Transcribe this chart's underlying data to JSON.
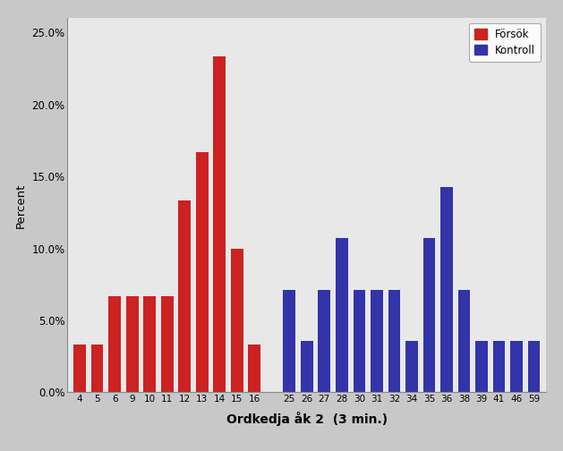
{
  "red_labels": [
    4,
    5,
    6,
    9,
    10,
    11,
    12,
    13,
    14,
    15,
    16
  ],
  "red_values": [
    3.33,
    3.33,
    6.67,
    6.67,
    6.67,
    6.67,
    13.33,
    16.67,
    23.33,
    10.0,
    3.33
  ],
  "blue_labels": [
    25,
    26,
    27,
    28,
    30,
    31,
    32,
    34,
    35,
    36,
    38,
    39,
    41,
    46,
    59
  ],
  "blue_values": [
    7.14,
    3.57,
    7.14,
    10.71,
    7.14,
    7.14,
    7.14,
    3.57,
    10.71,
    14.29,
    7.14,
    3.57,
    3.57,
    3.57,
    3.57
  ],
  "red_color": "#cc2222",
  "blue_color": "#3333aa",
  "plot_bg_color": "#e8e8e8",
  "fig_bg_color": "#c8c8c8",
  "ylabel": "Percent",
  "xlabel": "Ordkedja åk 2  (3 min.)",
  "ylim": [
    0,
    26
  ],
  "yticks": [
    0.0,
    5.0,
    10.0,
    15.0,
    20.0,
    25.0
  ],
  "legend_labels": [
    "Försök",
    "Kontroll"
  ],
  "bar_width": 0.7,
  "figsize": [
    6.29,
    5.04
  ],
  "dpi": 100
}
